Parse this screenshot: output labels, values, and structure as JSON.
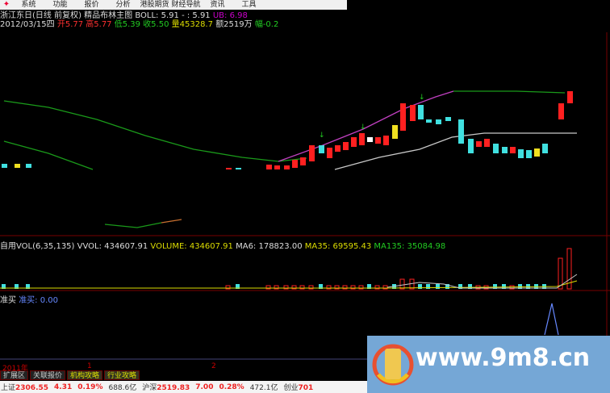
{
  "menu": {
    "items": [
      "系统",
      "功能",
      "报价",
      "分析",
      "港股期货",
      "财经导航",
      "资讯",
      "工具"
    ]
  },
  "header": {
    "line1": {
      "title": "浙江东日(日线 前复权) 精品布林主图",
      "boll": "BOLL: 5.91",
      "mid": "- : 5.91",
      "ub": "UB: 6.98"
    },
    "line2": {
      "date": "2012/03/15四",
      "open": "开5.77",
      "high": "高5.77",
      "low": "低5.39",
      "close": "收5.50",
      "volume": "量45328.7",
      "amount": "额2519万",
      "change": "幅-0.2"
    }
  },
  "volume_panel": {
    "label": "自用VOL(6,35,135)",
    "vvol": "VVOL: 434607.91",
    "volume": "VOLUME: 434607.91",
    "ma6": "MA6: 178823.00",
    "ma35": "MA35: 69595.43",
    "ma135": "MA135: 35084.98"
  },
  "signal_panel": {
    "label": "准买",
    "value": "准买: 0.00"
  },
  "time_axis": {
    "year": "2011年",
    "m1": "1",
    "m2": "2"
  },
  "tabs": [
    "扩展区",
    "关联报价",
    "机构攻略",
    "行业攻略"
  ],
  "status_bar": {
    "sh_label": "上证",
    "sh_value": "2306.55",
    "sh_change": "4.31",
    "sh_pct": "0.19%",
    "sh_amount": "688.6亿",
    "hs_label": "沪深",
    "hs_value": "2519.83",
    "hs_change": "7.00",
    "hs_pct": "0.28%",
    "hs_amount": "472.1亿",
    "cy_label": "创业",
    "cy_value": "701"
  },
  "watermark": {
    "text": "www.9m8.cn"
  },
  "colors": {
    "up": "#ff2020",
    "down": "#40e0e0",
    "ma_green": "#1a9a1a",
    "boll_purple": "#c040c0",
    "mid_gray": "#c8c8c8"
  }
}
